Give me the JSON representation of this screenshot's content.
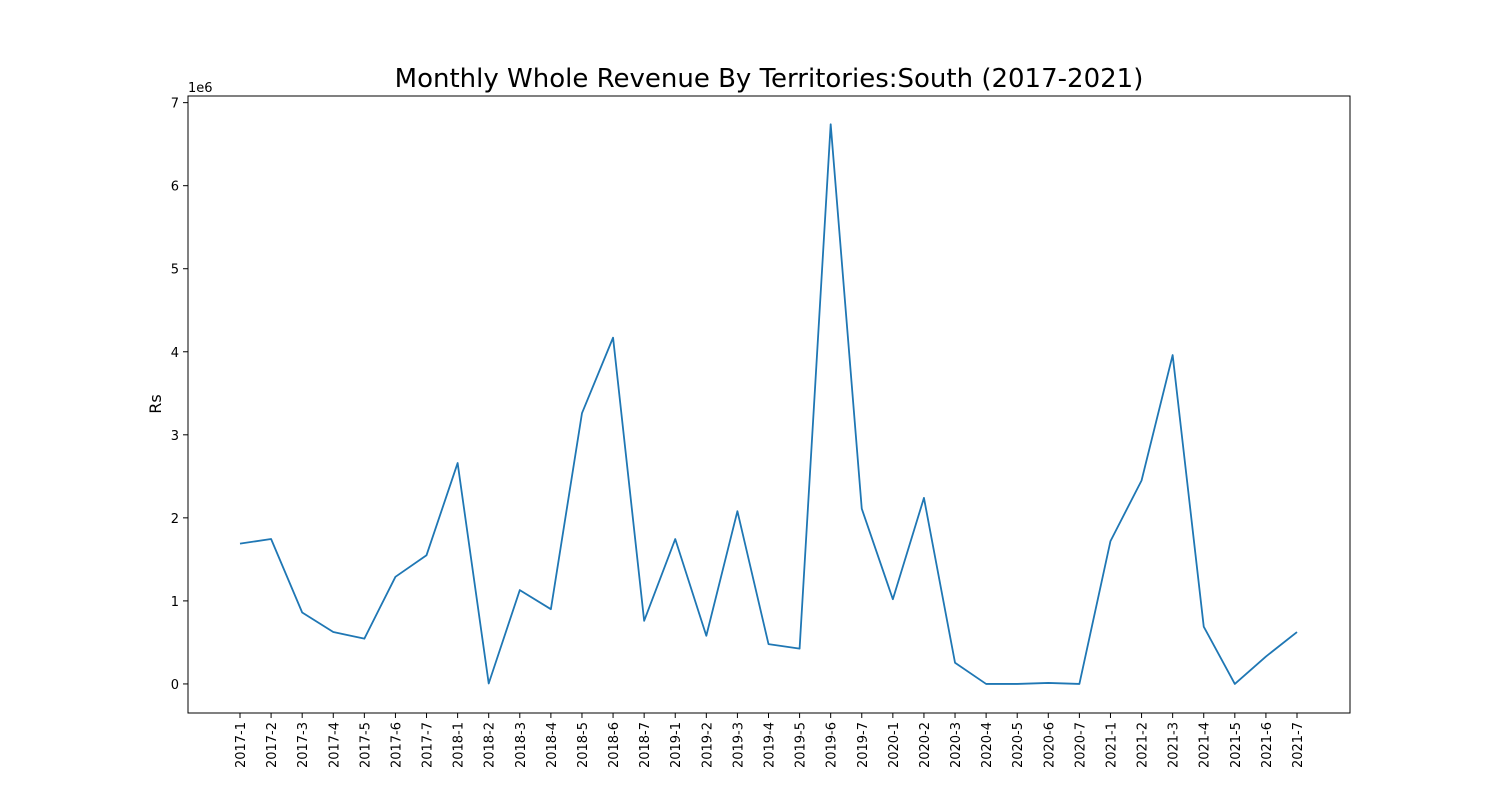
{
  "chart_data": {
    "type": "line",
    "title": "Monthly Whole Revenue By Territories:South (2017-2021)",
    "xlabel": "",
    "ylabel": "Rs",
    "y_offset_label": "1e6",
    "ylim": [
      -350000,
      7080000
    ],
    "y_ticks": [
      0,
      1000000,
      2000000,
      3000000,
      4000000,
      5000000,
      6000000,
      7000000
    ],
    "y_tick_labels": [
      "0",
      "1",
      "2",
      "3",
      "4",
      "5",
      "6",
      "7"
    ],
    "grid": false,
    "line_color": "#1f77b4",
    "categories": [
      "2017-1",
      "2017-2",
      "2017-3",
      "2017-4",
      "2017-5",
      "2017-6",
      "2017-7",
      "2018-1",
      "2018-2",
      "2018-3",
      "2018-4",
      "2018-5",
      "2018-6",
      "2018-7",
      "2019-1",
      "2019-2",
      "2019-3",
      "2019-4",
      "2019-5",
      "2019-6",
      "2019-7",
      "2020-1",
      "2020-2",
      "2020-3",
      "2020-4",
      "2020-5",
      "2020-6",
      "2020-7",
      "2021-1",
      "2021-2",
      "2021-3",
      "2021-4",
      "2021-5",
      "2021-6",
      "2021-7"
    ],
    "values": [
      1690000,
      1745000,
      860000,
      625000,
      545000,
      1290000,
      1550000,
      2660000,
      5000,
      1130000,
      900000,
      3260000,
      4170000,
      760000,
      1745000,
      580000,
      2080000,
      480000,
      425000,
      6740000,
      2110000,
      1020000,
      2240000,
      255000,
      0,
      0,
      12000,
      0,
      1720000,
      2450000,
      3960000,
      690000,
      0,
      330000,
      625000
    ]
  }
}
